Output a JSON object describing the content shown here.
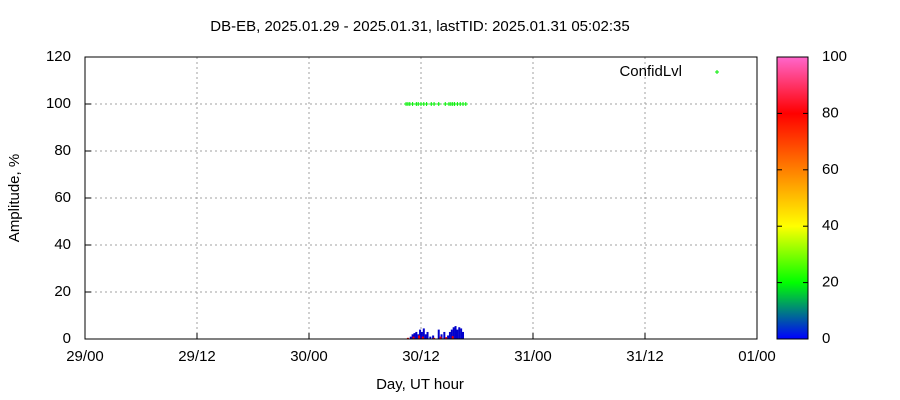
{
  "chart_data": {
    "type": "scatter",
    "title": "DB-EB, 2025.01.29 - 2025.01.31, lastTID: 2025.01.31 05:02:35",
    "x_label": "Day, UT hour",
    "y_label": "Amplitude, %",
    "xlim": [
      0,
      72
    ],
    "xticks": [
      {
        "value": 0,
        "label": "29/00"
      },
      {
        "value": 12,
        "label": "29/12"
      },
      {
        "value": 24,
        "label": "30/00"
      },
      {
        "value": 36,
        "label": "30/12"
      },
      {
        "value": 48,
        "label": "31/00"
      },
      {
        "value": 60,
        "label": "31/12"
      },
      {
        "value": 72,
        "label": "01/00"
      }
    ],
    "ylim": [
      0,
      120
    ],
    "yticks": [
      0,
      20,
      40,
      60,
      80,
      100,
      120
    ],
    "grid": true,
    "legend": "upper right",
    "series": [
      {
        "name": "ConfidLvl",
        "color": "#00ee00",
        "style": "points",
        "x": [
          34.4,
          34.6,
          34.8,
          35.1,
          35.5,
          35.7,
          36.0,
          36.3,
          36.6,
          37.1,
          37.4,
          37.9,
          38.6,
          39.0,
          39.2,
          39.4,
          39.6,
          39.9,
          40.2,
          40.5,
          40.8
        ],
        "values": [
          100,
          100,
          100,
          100,
          100,
          100,
          100,
          100,
          100,
          100,
          100,
          100,
          100,
          100,
          100,
          100,
          100,
          100,
          100,
          100,
          100
        ]
      },
      {
        "color": "#0000cc",
        "style": "impulse",
        "x": [
          34.9,
          35.1,
          35.3,
          35.5,
          35.7,
          35.9,
          36.1,
          36.3,
          36.5,
          36.7,
          37.0,
          37.3,
          37.9,
          38.2,
          38.5,
          38.9,
          39.1,
          39.3,
          39.5,
          39.7,
          39.9,
          40.1,
          40.3,
          40.5
        ],
        "values": [
          1,
          2,
          2.5,
          3,
          2,
          4,
          3,
          4.5,
          2,
          3,
          1,
          1.5,
          4,
          2,
          3,
          1.5,
          3,
          4,
          5,
          5.5,
          4,
          5,
          4.5,
          3
        ]
      },
      {
        "color": "#ee0000",
        "style": "impulse",
        "x": [
          34.6,
          35.2,
          35.8,
          36.2,
          37.4,
          38.1,
          38.7,
          39.4
        ],
        "values": [
          0.5,
          1,
          1.5,
          1,
          0.5,
          1,
          0.8,
          1.2
        ]
      }
    ],
    "colorbar": {
      "lim": [
        0,
        100
      ],
      "ticks": [
        0,
        20,
        40,
        60,
        80,
        100
      ],
      "colors": [
        "#0000ff",
        "#00ff00",
        "#ffff00",
        "#ff8000",
        "#ff0000",
        "#ff66cc"
      ]
    }
  }
}
